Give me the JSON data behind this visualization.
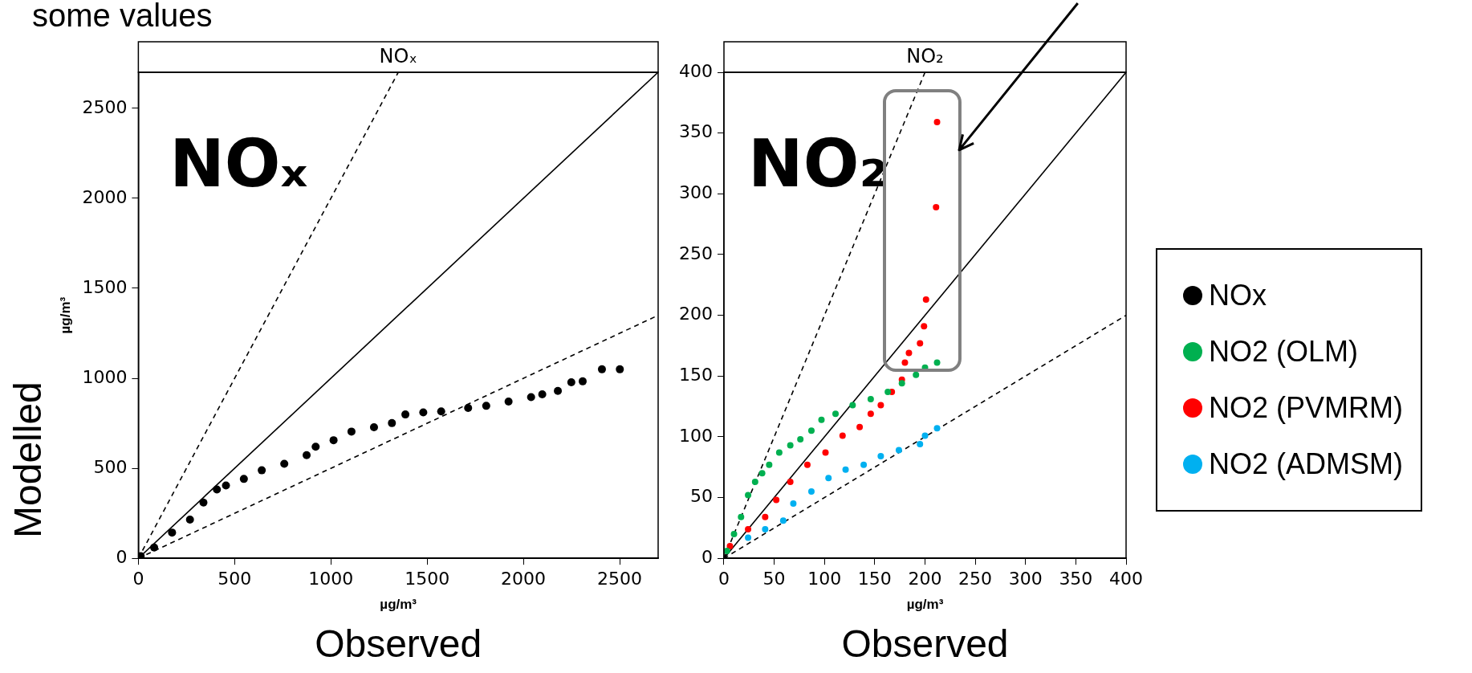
{
  "chart_data": [
    {
      "type": "scatter",
      "title": "NOₓ",
      "xlabel": "µg/m³",
      "ylabel": "µg/m³",
      "annotations": [
        "some values",
        "NOₓ",
        "Modelled",
        "Observed"
      ],
      "xlim": [
        0,
        2700
      ],
      "ylim": [
        0,
        2700
      ],
      "xticks": [
        0,
        500,
        1000,
        1500,
        2000,
        2500
      ],
      "yticks": [
        0,
        500,
        1000,
        1500,
        2000,
        2500
      ],
      "legend": "right",
      "marker": "circle",
      "series": [
        {
          "name": "NOx",
          "color": "#000000",
          "x": [
            12,
            82,
            175,
            268,
            338,
            408,
            455,
            548,
            641,
            758,
            874,
            921,
            1014,
            1107,
            1224,
            1317,
            1387,
            1480,
            1573,
            1713,
            1807,
            1923,
            2040,
            2098,
            2179,
            2249,
            2308,
            2408,
            2501
          ],
          "values": [
            12,
            60,
            143,
            215,
            310,
            382,
            405,
            441,
            489,
            525,
            573,
            620,
            656,
            704,
            728,
            751,
            799,
            811,
            816,
            835,
            847,
            871,
            895,
            911,
            930,
            978,
            983,
            1050,
            1050
          ]
        },
        {
          "type": "line",
          "color": "#000000",
          "line_style": "dashed",
          "marker": "none",
          "x": [
            0,
            1350
          ],
          "values": [
            0,
            2700
          ]
        },
        {
          "type": "line",
          "color": "#000000",
          "line_style": "solid",
          "marker": "none",
          "x": [
            0,
            2700
          ],
          "values": [
            0,
            2700
          ]
        },
        {
          "type": "line",
          "color": "#000000",
          "line_style": "dashed",
          "marker": "none",
          "x": [
            0,
            2700
          ],
          "values": [
            0,
            1350
          ]
        }
      ]
    },
    {
      "type": "scatter",
      "title": "NO₂",
      "xlabel": "µg/m³",
      "annotations": [
        "NO₂",
        "Observed"
      ],
      "xlim": [
        0,
        400
      ],
      "ylim": [
        0,
        400
      ],
      "xticks": [
        0,
        50,
        100,
        150,
        200,
        250,
        300,
        350,
        400
      ],
      "yticks": [
        0,
        50,
        100,
        150,
        200,
        250,
        300,
        350,
        400
      ],
      "legend": "right",
      "marker": "circle",
      "series": [
        {
          "name": "NO2 (OLM)",
          "color": "#00b050",
          "x": [
            3,
            10,
            17,
            24,
            31,
            38,
            45,
            55,
            66,
            76,
            87,
            97,
            111,
            128,
            146,
            163,
            177,
            191,
            200,
            212
          ],
          "values": [
            6,
            20,
            34,
            52,
            63,
            70,
            77,
            87,
            93,
            98,
            105,
            114,
            119,
            126,
            131,
            137,
            144,
            151,
            157,
            161
          ]
        },
        {
          "name": "NO2 (PVMRM)",
          "color": "#ff0000",
          "x": [
            6,
            24,
            41,
            52,
            66,
            83,
            101,
            118,
            135,
            146,
            156,
            167,
            177,
            180,
            184,
            195,
            199,
            201,
            211,
            212
          ],
          "values": [
            10,
            24,
            34,
            48,
            63,
            77,
            87,
            101,
            108,
            119,
            126,
            137,
            147,
            161,
            169,
            177,
            191,
            213,
            289,
            359
          ]
        },
        {
          "name": "NO2 (ADMSM)",
          "color": "#00b0f0",
          "x": [
            24,
            41,
            59,
            69,
            87,
            104,
            121,
            139,
            156,
            174,
            195,
            200,
            212
          ],
          "values": [
            17,
            24,
            31,
            45,
            55,
            66,
            73,
            77,
            84,
            89,
            94,
            101,
            107
          ]
        },
        {
          "type": "line",
          "color": "#000000",
          "line_style": "dashed",
          "marker": "none",
          "x": [
            0,
            200
          ],
          "values": [
            0,
            400
          ]
        },
        {
          "type": "line",
          "color": "#000000",
          "line_style": "solid",
          "marker": "none",
          "x": [
            0,
            400
          ],
          "values": [
            0,
            400
          ]
        },
        {
          "type": "line",
          "color": "#000000",
          "line_style": "dashed",
          "marker": "none",
          "x": [
            0,
            400
          ],
          "values": [
            0,
            200
          ]
        }
      ]
    }
  ]
}
